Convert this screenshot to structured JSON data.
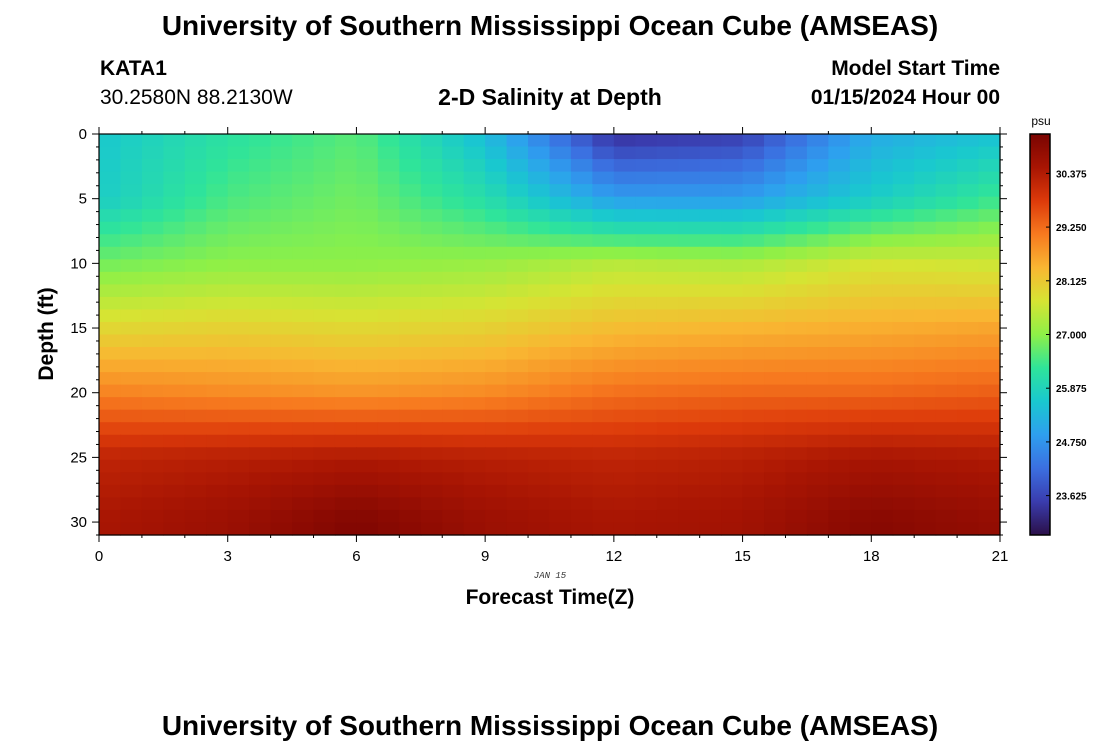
{
  "header": {
    "title_top": "University of Southern Mississippi Ocean Cube (AMSEAS)",
    "title_bottom": "University of Southern Mississippi Ocean Cube (AMSEAS)",
    "station_id": "KATA1",
    "coordinates": "30.2580N  88.2130W",
    "plot_title": "2-D Salinity at Depth",
    "model_start_label": "Model Start Time",
    "model_start_value": "01/15/2024 Hour 00"
  },
  "chart_data": {
    "type": "heatmap",
    "title": "2-D Salinity at Depth",
    "xlabel": "Forecast Time(Z)",
    "ylabel": "Depth (ft)",
    "x_date_label": "JAN 15",
    "xlim": [
      0,
      21
    ],
    "ylim": [
      31,
      0
    ],
    "x_ticks": [
      0,
      3,
      6,
      9,
      12,
      15,
      18,
      21
    ],
    "y_ticks": [
      0,
      5,
      10,
      15,
      20,
      25,
      30
    ],
    "x_samples": [
      0,
      3,
      6,
      9,
      12,
      15,
      18,
      21
    ],
    "depth_samples": [
      0,
      5,
      10,
      15,
      20,
      25,
      30
    ],
    "salinity_psu": [
      [
        25.6,
        26.2,
        26.6,
        25.4,
        23.3,
        23.5,
        25.1,
        25.5
      ],
      [
        25.7,
        26.5,
        26.8,
        26.1,
        24.9,
        24.9,
        25.7,
        26.4
      ],
      [
        26.8,
        27.0,
        27.0,
        27.1,
        27.4,
        27.3,
        27.7,
        27.6
      ],
      [
        27.9,
        28.0,
        27.9,
        28.0,
        28.3,
        28.4,
        28.5,
        28.6
      ],
      [
        29.0,
        28.9,
        28.8,
        28.9,
        29.2,
        29.3,
        29.3,
        29.4
      ],
      [
        30.2,
        30.3,
        30.4,
        30.3,
        30.2,
        30.3,
        30.5,
        30.4
      ],
      [
        30.5,
        30.7,
        31.1,
        30.7,
        30.5,
        30.6,
        31.0,
        30.8
      ]
    ],
    "colorbar": {
      "unit": "psu",
      "min": 22.8,
      "max": 31.2,
      "ticks": [
        "23.625",
        "24.750",
        "25.875",
        "27.000",
        "28.125",
        "29.250",
        "30.375"
      ],
      "colors": [
        "#2b1048",
        "#3a3cae",
        "#3b6fe0",
        "#2e9fef",
        "#19c8cf",
        "#2fe49a",
        "#8ef047",
        "#d6e433",
        "#f9b632",
        "#f77a1f",
        "#dd3a0a",
        "#a81503",
        "#7a0402"
      ]
    }
  }
}
